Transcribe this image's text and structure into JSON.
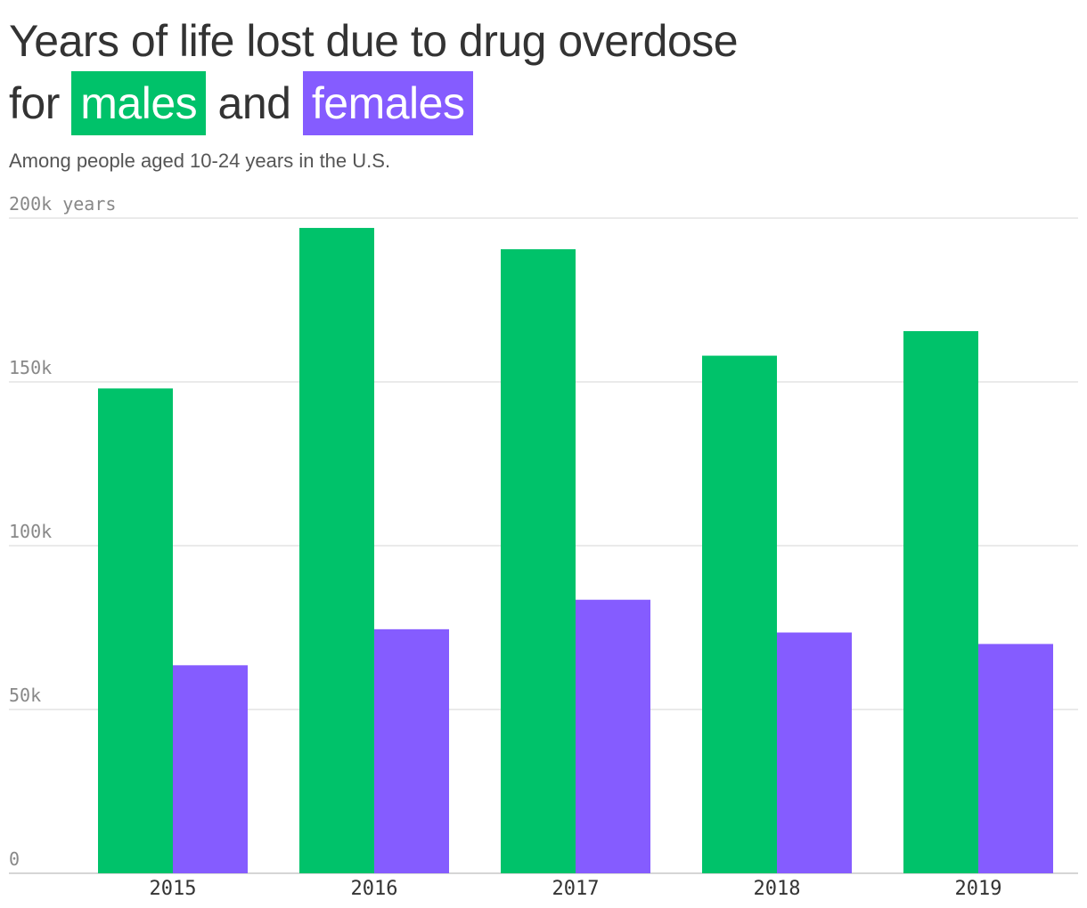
{
  "header": {
    "title_line1": "Years of life lost due to drug overdose",
    "title_for": "for",
    "title_and": "and",
    "subtitle": "Among people aged 10-24 years in the U.S."
  },
  "colors": {
    "males": "#00c26a",
    "females": "#855cff",
    "grid": "#e3e3e3",
    "axis": "#d6d6d6"
  },
  "chart_data": {
    "type": "bar",
    "categories": [
      "2015",
      "2016",
      "2017",
      "2018",
      "2019"
    ],
    "series": [
      {
        "name": "males",
        "values": [
          148000,
          197000,
          190500,
          158000,
          165500
        ]
      },
      {
        "name": "females",
        "values": [
          63500,
          74500,
          83500,
          73500,
          70000
        ]
      }
    ],
    "ylim": [
      0,
      200000
    ],
    "yticks": [
      0,
      50000,
      100000,
      150000,
      200000
    ],
    "ytick_labels": [
      "0",
      "50k",
      "100k",
      "150k",
      "200k years"
    ],
    "grid": true,
    "legend": "inline-in-title"
  }
}
